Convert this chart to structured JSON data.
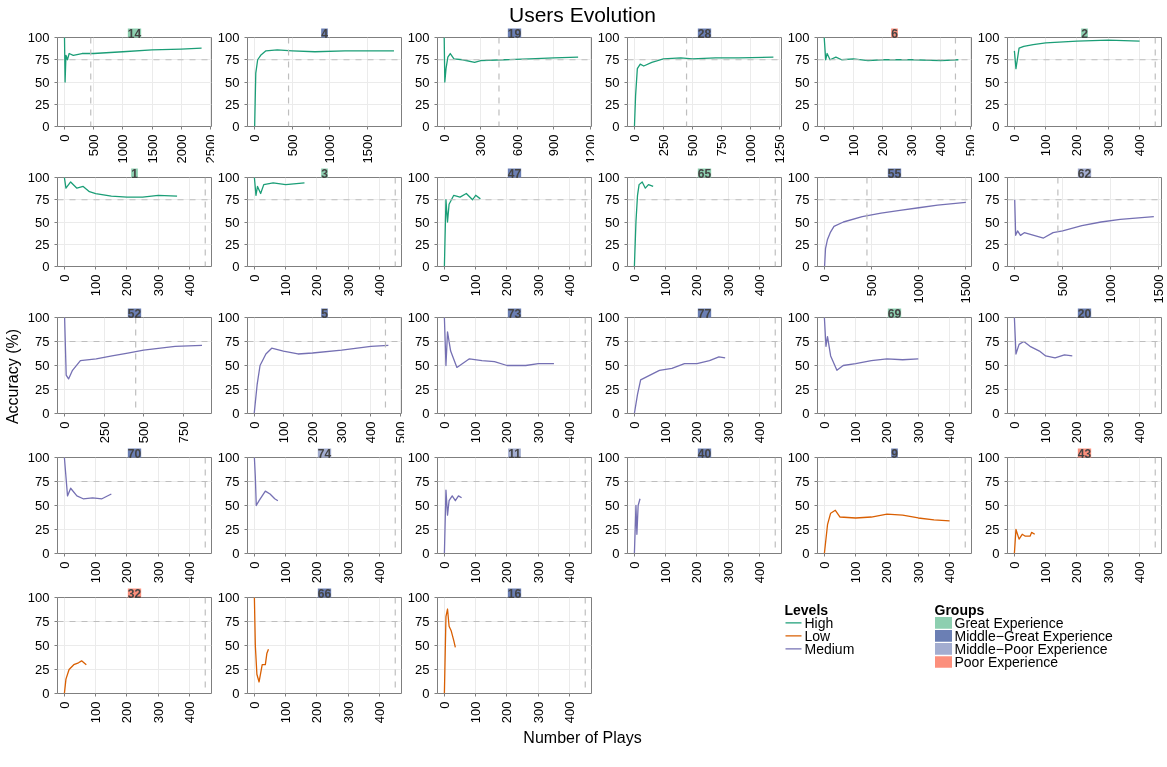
{
  "chart_data": [
    {
      "type": "other",
      "title": "Users Evolution",
      "xlabel": "Number of Plays",
      "ylabel": "Accuracy (%)"
    },
    {
      "type": "line",
      "title": "14",
      "colors": [
        "#8dcfb0"
      ],
      "xlim": [
        -120,
        2520
      ],
      "xticks": [
        0,
        500,
        1000,
        1500,
        2000,
        2500
      ],
      "ylim": [
        0,
        100
      ],
      "yticks": [
        0,
        25,
        50,
        75,
        100
      ],
      "grid": true,
      "line_style": "solid",
      "ref_lines": [
        {
          "axis": "y",
          "value": 75,
          "color": "#bebebe",
          "line_style": "dashed"
        },
        {
          "axis": "x",
          "value": 450,
          "color": "#bebebe",
          "line_style": "dashed"
        }
      ],
      "series": [
        {
          "color": "#1b9e77",
          "x": [
            0,
            10,
            25,
            50,
            80,
            150,
            300,
            500,
            1000,
            1500,
            2000,
            2350
          ],
          "values": [
            100,
            50,
            80,
            75,
            82,
            80,
            82,
            82,
            84,
            86,
            87,
            88
          ]
        }
      ]
    },
    {
      "type": "line",
      "title": "4",
      "colors": [
        "#6b7fb4"
      ],
      "xlim": [
        -95,
        1950
      ],
      "xticks": [
        0,
        500,
        1000,
        1500
      ],
      "ylim": [
        0,
        100
      ],
      "yticks": [
        0,
        25,
        50,
        75,
        100
      ],
      "grid": true,
      "line_style": "solid",
      "ref_lines": [
        {
          "axis": "y",
          "value": 75,
          "color": "#bebebe",
          "line_style": "dashed"
        },
        {
          "axis": "x",
          "value": 450,
          "color": "#bebebe",
          "line_style": "dashed"
        }
      ],
      "series": [
        {
          "color": "#1b9e77",
          "x": [
            0,
            15,
            40,
            80,
            150,
            300,
            500,
            800,
            1200,
            1500,
            1850
          ],
          "values": [
            0,
            60,
            75,
            80,
            85,
            86,
            85,
            84,
            85,
            85,
            85
          ]
        }
      ]
    },
    {
      "type": "line",
      "title": "19",
      "colors": [
        "#6b7fb4"
      ],
      "xlim": [
        -55,
        1210
      ],
      "xticks": [
        0,
        300,
        600,
        900,
        1200
      ],
      "ylim": [
        0,
        100
      ],
      "yticks": [
        0,
        25,
        50,
        75,
        100
      ],
      "grid": true,
      "line_style": "solid",
      "ref_lines": [
        {
          "axis": "y",
          "value": 75,
          "color": "#bebebe",
          "line_style": "dashed"
        },
        {
          "axis": "x",
          "value": 450,
          "color": "#bebebe",
          "line_style": "dashed"
        }
      ],
      "series": [
        {
          "color": "#1b9e77",
          "x": [
            0,
            5,
            15,
            30,
            50,
            80,
            150,
            250,
            300,
            500,
            700,
            900,
            1100
          ],
          "values": [
            100,
            50,
            65,
            78,
            82,
            76,
            75,
            72,
            74,
            75,
            76,
            77,
            78
          ]
        }
      ]
    },
    {
      "type": "line",
      "title": "28",
      "colors": [
        "#6b7fb4"
      ],
      "xlim": [
        -60,
        1270
      ],
      "xticks": [
        0,
        250,
        500,
        750,
        1000,
        1250
      ],
      "ylim": [
        0,
        100
      ],
      "yticks": [
        0,
        25,
        50,
        75,
        100
      ],
      "grid": true,
      "line_style": "solid",
      "ref_lines": [
        {
          "axis": "y",
          "value": 75,
          "color": "#bebebe",
          "line_style": "dashed"
        },
        {
          "axis": "x",
          "value": 450,
          "color": "#bebebe",
          "line_style": "dashed"
        }
      ],
      "series": [
        {
          "color": "#1b9e77",
          "x": [
            0,
            10,
            25,
            50,
            80,
            150,
            250,
            400,
            500,
            700,
            900,
            1200
          ],
          "values": [
            0,
            35,
            65,
            70,
            68,
            72,
            76,
            77,
            76,
            77,
            77,
            78
          ]
        }
      ]
    },
    {
      "type": "line",
      "title": "6",
      "colors": [
        "#fc8f7c"
      ],
      "xlim": [
        -23,
        505
      ],
      "xticks": [
        0,
        100,
        200,
        300,
        400,
        500
      ],
      "ylim": [
        0,
        100
      ],
      "yticks": [
        0,
        25,
        50,
        75,
        100
      ],
      "grid": true,
      "line_style": "solid",
      "ref_lines": [
        {
          "axis": "y",
          "value": 75,
          "color": "#bebebe",
          "line_style": "dashed"
        },
        {
          "axis": "x",
          "value": 450,
          "color": "#bebebe",
          "line_style": "dashed"
        }
      ],
      "series": [
        {
          "color": "#1b9e77",
          "x": [
            0,
            5,
            10,
            20,
            40,
            60,
            100,
            150,
            200,
            300,
            400,
            460
          ],
          "values": [
            100,
            75,
            82,
            75,
            78,
            75,
            76,
            74,
            75,
            75,
            74,
            75
          ]
        }
      ]
    },
    {
      "type": "line",
      "title": "2",
      "colors": [
        "#8dcfb0"
      ],
      "xlim": [
        -22,
        470
      ],
      "xticks": [
        0,
        100,
        200,
        300,
        400
      ],
      "ylim": [
        0,
        100
      ],
      "yticks": [
        0,
        25,
        50,
        75,
        100
      ],
      "grid": true,
      "line_style": "solid",
      "ref_lines": [
        {
          "axis": "y",
          "value": 75,
          "color": "#bebebe",
          "line_style": "dashed"
        },
        {
          "axis": "x",
          "value": 450,
          "color": "#bebebe",
          "line_style": "dashed"
        }
      ],
      "series": [
        {
          "color": "#1b9e77",
          "x": [
            0,
            5,
            15,
            30,
            60,
            100,
            200,
            300,
            400
          ],
          "values": [
            85,
            65,
            88,
            90,
            92,
            94,
            96,
            97,
            96
          ]
        }
      ]
    },
    {
      "type": "line",
      "title": "1",
      "colors": [
        "#8dcfb0"
      ],
      "xlim": [
        -22,
        470
      ],
      "xticks": [
        0,
        100,
        200,
        300,
        400
      ],
      "ylim": [
        0,
        100
      ],
      "yticks": [
        0,
        25,
        50,
        75,
        100
      ],
      "grid": true,
      "line_style": "solid",
      "ref_lines": [
        {
          "axis": "y",
          "value": 75,
          "color": "#bebebe",
          "line_style": "dashed"
        },
        {
          "axis": "x",
          "value": 450,
          "color": "#bebebe",
          "line_style": "dashed"
        }
      ],
      "series": [
        {
          "color": "#1b9e77",
          "x": [
            0,
            5,
            20,
            40,
            60,
            80,
            100,
            150,
            200,
            250,
            300,
            360
          ],
          "values": [
            100,
            88,
            95,
            88,
            90,
            84,
            82,
            79,
            78,
            78,
            80,
            79
          ]
        }
      ]
    },
    {
      "type": "line",
      "title": "3",
      "colors": [
        "#8dcfb0"
      ],
      "xlim": [
        -22,
        470
      ],
      "xticks": [
        0,
        100,
        200,
        300,
        400
      ],
      "ylim": [
        0,
        100
      ],
      "yticks": [
        0,
        25,
        50,
        75,
        100
      ],
      "grid": true,
      "line_style": "solid",
      "ref_lines": [
        {
          "axis": "y",
          "value": 75,
          "color": "#bebebe",
          "line_style": "dashed"
        },
        {
          "axis": "x",
          "value": 450,
          "color": "#bebebe",
          "line_style": "dashed"
        }
      ],
      "series": [
        {
          "color": "#1b9e77",
          "x": [
            0,
            5,
            10,
            20,
            30,
            60,
            100,
            160
          ],
          "values": [
            100,
            80,
            90,
            82,
            92,
            94,
            92,
            94
          ]
        }
      ]
    },
    {
      "type": "line",
      "title": "47",
      "colors": [
        "#6b7fb4"
      ],
      "xlim": [
        -22,
        470
      ],
      "xticks": [
        0,
        100,
        200,
        300,
        400
      ],
      "ylim": [
        0,
        100
      ],
      "yticks": [
        0,
        25,
        50,
        75,
        100
      ],
      "grid": true,
      "line_style": "solid",
      "ref_lines": [
        {
          "axis": "y",
          "value": 75,
          "color": "#bebebe",
          "line_style": "dashed"
        },
        {
          "axis": "x",
          "value": 450,
          "color": "#bebebe",
          "line_style": "dashed"
        }
      ],
      "series": [
        {
          "color": "#1b9e77",
          "x": [
            0,
            5,
            10,
            15,
            30,
            50,
            70,
            90,
            100,
            115
          ],
          "values": [
            0,
            75,
            50,
            70,
            80,
            78,
            82,
            75,
            80,
            76
          ]
        }
      ]
    },
    {
      "type": "line",
      "title": "65",
      "colors": [
        "#8dcfb0"
      ],
      "xlim": [
        -22,
        470
      ],
      "xticks": [
        0,
        100,
        200,
        300,
        400
      ],
      "ylim": [
        0,
        100
      ],
      "yticks": [
        0,
        25,
        50,
        75,
        100
      ],
      "grid": true,
      "line_style": "solid",
      "ref_lines": [
        {
          "axis": "y",
          "value": 75,
          "color": "#bebebe",
          "line_style": "dashed"
        },
        {
          "axis": "x",
          "value": 450,
          "color": "#bebebe",
          "line_style": "dashed"
        }
      ],
      "series": [
        {
          "color": "#1b9e77",
          "x": [
            0,
            5,
            10,
            15,
            25,
            35,
            45,
            60
          ],
          "values": [
            0,
            50,
            80,
            92,
            95,
            88,
            92,
            90
          ]
        }
      ]
    },
    {
      "type": "line",
      "title": "55",
      "colors": [
        "#6b7fb4"
      ],
      "xlim": [
        -75,
        1560
      ],
      "xticks": [
        0,
        500,
        1000,
        1500
      ],
      "ylim": [
        0,
        100
      ],
      "yticks": [
        0,
        25,
        50,
        75,
        100
      ],
      "grid": true,
      "line_style": "solid",
      "ref_lines": [
        {
          "axis": "y",
          "value": 75,
          "color": "#bebebe",
          "line_style": "dashed"
        },
        {
          "axis": "x",
          "value": 450,
          "color": "#bebebe",
          "line_style": "dashed"
        }
      ],
      "series": [
        {
          "color": "#7570b3",
          "x": [
            0,
            10,
            30,
            60,
            100,
            200,
            400,
            600,
            800,
            1000,
            1200,
            1500
          ],
          "values": [
            0,
            20,
            30,
            38,
            45,
            50,
            56,
            60,
            63,
            66,
            69,
            72
          ]
        }
      ]
    },
    {
      "type": "line",
      "title": "62",
      "colors": [
        "#a3add0"
      ],
      "xlim": [
        -75,
        1530
      ],
      "xticks": [
        0,
        500,
        1000,
        1500
      ],
      "ylim": [
        0,
        100
      ],
      "yticks": [
        0,
        25,
        50,
        75,
        100
      ],
      "grid": true,
      "line_style": "solid",
      "ref_lines": [
        {
          "axis": "y",
          "value": 75,
          "color": "#bebebe",
          "line_style": "dashed"
        },
        {
          "axis": "x",
          "value": 450,
          "color": "#bebebe",
          "line_style": "dashed"
        }
      ],
      "series": [
        {
          "color": "#7570b3",
          "x": [
            0,
            10,
            30,
            60,
            100,
            200,
            300,
            400,
            500,
            700,
            900,
            1100,
            1450
          ],
          "values": [
            75,
            35,
            40,
            35,
            38,
            35,
            32,
            38,
            40,
            46,
            50,
            53,
            56
          ]
        }
      ]
    },
    {
      "type": "line",
      "title": "52",
      "colors": [
        "#6b7fb4"
      ],
      "xlim": [
        -45,
        930
      ],
      "xticks": [
        0,
        250,
        500,
        750
      ],
      "ylim": [
        0,
        100
      ],
      "yticks": [
        0,
        25,
        50,
        75,
        100
      ],
      "grid": true,
      "line_style": "solid",
      "ref_lines": [
        {
          "axis": "y",
          "value": 75,
          "color": "#bebebe",
          "line_style": "dashed"
        },
        {
          "axis": "x",
          "value": 450,
          "color": "#bebebe",
          "line_style": "dashed"
        }
      ],
      "series": [
        {
          "color": "#7570b3",
          "x": [
            0,
            10,
            25,
            50,
            100,
            200,
            300,
            400,
            500,
            700,
            870
          ],
          "values": [
            100,
            40,
            36,
            45,
            55,
            57,
            60,
            63,
            66,
            70,
            71
          ]
        }
      ]
    },
    {
      "type": "line",
      "title": "5",
      "colors": [
        "#6b7fb4"
      ],
      "xlim": [
        -23,
        505
      ],
      "xticks": [
        0,
        100,
        200,
        300,
        400,
        500
      ],
      "ylim": [
        0,
        100
      ],
      "yticks": [
        0,
        25,
        50,
        75,
        100
      ],
      "grid": true,
      "line_style": "solid",
      "ref_lines": [
        {
          "axis": "y",
          "value": 75,
          "color": "#bebebe",
          "line_style": "dashed"
        },
        {
          "axis": "x",
          "value": 450,
          "color": "#bebebe",
          "line_style": "dashed"
        }
      ],
      "series": [
        {
          "color": "#7570b3",
          "x": [
            0,
            10,
            20,
            40,
            60,
            100,
            150,
            200,
            300,
            400,
            460
          ],
          "values": [
            0,
            30,
            50,
            62,
            68,
            65,
            62,
            63,
            66,
            70,
            71
          ]
        }
      ]
    },
    {
      "type": "line",
      "title": "73",
      "colors": [
        "#6b7fb4"
      ],
      "xlim": [
        -22,
        470
      ],
      "xticks": [
        0,
        100,
        200,
        300,
        400
      ],
      "ylim": [
        0,
        100
      ],
      "yticks": [
        0,
        25,
        50,
        75,
        100
      ],
      "grid": true,
      "line_style": "solid",
      "ref_lines": [
        {
          "axis": "y",
          "value": 75,
          "color": "#bebebe",
          "line_style": "dashed"
        },
        {
          "axis": "x",
          "value": 450,
          "color": "#bebebe",
          "line_style": "dashed"
        }
      ],
      "series": [
        {
          "color": "#7570b3",
          "x": [
            0,
            5,
            10,
            20,
            40,
            80,
            120,
            160,
            200,
            260,
            300,
            350
          ],
          "values": [
            100,
            50,
            85,
            65,
            48,
            57,
            55,
            54,
            50,
            50,
            52,
            52
          ]
        }
      ]
    },
    {
      "type": "line",
      "title": "77",
      "colors": [
        "#6b7fb4"
      ],
      "xlim": [
        -22,
        470
      ],
      "xticks": [
        0,
        100,
        200,
        300,
        400
      ],
      "ylim": [
        0,
        100
      ],
      "yticks": [
        0,
        25,
        50,
        75,
        100
      ],
      "grid": true,
      "line_style": "solid",
      "ref_lines": [
        {
          "axis": "y",
          "value": 75,
          "color": "#bebebe",
          "line_style": "dashed"
        },
        {
          "axis": "x",
          "value": 450,
          "color": "#bebebe",
          "line_style": "dashed"
        }
      ],
      "series": [
        {
          "color": "#7570b3",
          "x": [
            0,
            10,
            20,
            50,
            80,
            120,
            160,
            200,
            240,
            270,
            290
          ],
          "values": [
            0,
            20,
            35,
            40,
            45,
            47,
            52,
            52,
            55,
            59,
            58
          ]
        }
      ]
    },
    {
      "type": "line",
      "title": "69",
      "colors": [
        "#8dcfb0"
      ],
      "xlim": [
        -22,
        470
      ],
      "xticks": [
        0,
        100,
        200,
        300,
        400
      ],
      "ylim": [
        0,
        100
      ],
      "yticks": [
        0,
        25,
        50,
        75,
        100
      ],
      "grid": true,
      "line_style": "solid",
      "ref_lines": [
        {
          "axis": "y",
          "value": 75,
          "color": "#bebebe",
          "line_style": "dashed"
        },
        {
          "axis": "x",
          "value": 450,
          "color": "#bebebe",
          "line_style": "dashed"
        }
      ],
      "series": [
        {
          "color": "#7570b3",
          "x": [
            0,
            5,
            10,
            20,
            40,
            60,
            100,
            150,
            200,
            250,
            300
          ],
          "values": [
            100,
            70,
            80,
            60,
            45,
            50,
            52,
            55,
            57,
            56,
            57
          ]
        }
      ]
    },
    {
      "type": "line",
      "title": "20",
      "colors": [
        "#6b7fb4"
      ],
      "xlim": [
        -22,
        470
      ],
      "xticks": [
        0,
        100,
        200,
        300,
        400
      ],
      "ylim": [
        0,
        100
      ],
      "yticks": [
        0,
        25,
        50,
        75,
        100
      ],
      "grid": true,
      "line_style": "solid",
      "ref_lines": [
        {
          "axis": "y",
          "value": 75,
          "color": "#bebebe",
          "line_style": "dashed"
        },
        {
          "axis": "x",
          "value": 450,
          "color": "#bebebe",
          "line_style": "dashed"
        }
      ],
      "series": [
        {
          "color": "#7570b3",
          "x": [
            0,
            5,
            15,
            30,
            50,
            80,
            100,
            130,
            160,
            185
          ],
          "values": [
            100,
            62,
            72,
            75,
            70,
            65,
            60,
            58,
            61,
            60
          ]
        }
      ]
    },
    {
      "type": "line",
      "title": "70",
      "colors": [
        "#6b7fb4"
      ],
      "xlim": [
        -22,
        470
      ],
      "xticks": [
        0,
        100,
        200,
        300,
        400
      ],
      "ylim": [
        0,
        100
      ],
      "yticks": [
        0,
        25,
        50,
        75,
        100
      ],
      "grid": true,
      "line_style": "solid",
      "ref_lines": [
        {
          "axis": "y",
          "value": 75,
          "color": "#bebebe",
          "line_style": "dashed"
        },
        {
          "axis": "x",
          "value": 450,
          "color": "#bebebe",
          "line_style": "dashed"
        }
      ],
      "series": [
        {
          "color": "#7570b3",
          "x": [
            0,
            5,
            10,
            20,
            40,
            60,
            90,
            120,
            150
          ],
          "values": [
            100,
            80,
            60,
            68,
            60,
            57,
            58,
            57,
            62
          ]
        }
      ]
    },
    {
      "type": "line",
      "title": "74",
      "colors": [
        "#a3add0"
      ],
      "xlim": [
        -22,
        470
      ],
      "xticks": [
        0,
        100,
        200,
        300,
        400
      ],
      "ylim": [
        0,
        100
      ],
      "yticks": [
        0,
        25,
        50,
        75,
        100
      ],
      "grid": true,
      "line_style": "solid",
      "ref_lines": [
        {
          "axis": "y",
          "value": 75,
          "color": "#bebebe",
          "line_style": "dashed"
        },
        {
          "axis": "x",
          "value": 450,
          "color": "#bebebe",
          "line_style": "dashed"
        }
      ],
      "series": [
        {
          "color": "#7570b3",
          "x": [
            0,
            3,
            6,
            15,
            25,
            35,
            50,
            65,
            75
          ],
          "values": [
            100,
            80,
            50,
            55,
            60,
            65,
            62,
            57,
            55
          ]
        }
      ]
    },
    {
      "type": "line",
      "title": "11",
      "colors": [
        "#a3add0"
      ],
      "xlim": [
        -22,
        470
      ],
      "xticks": [
        0,
        100,
        200,
        300,
        400
      ],
      "ylim": [
        0,
        100
      ],
      "yticks": [
        0,
        25,
        50,
        75,
        100
      ],
      "grid": true,
      "line_style": "solid",
      "ref_lines": [
        {
          "axis": "y",
          "value": 75,
          "color": "#bebebe",
          "line_style": "dashed"
        },
        {
          "axis": "x",
          "value": 450,
          "color": "#bebebe",
          "line_style": "dashed"
        }
      ],
      "series": [
        {
          "color": "#7570b3",
          "x": [
            0,
            5,
            10,
            15,
            25,
            35,
            45,
            55
          ],
          "values": [
            0,
            66,
            40,
            55,
            60,
            55,
            60,
            58
          ]
        }
      ]
    },
    {
      "type": "line",
      "title": "40",
      "colors": [
        "#6b7fb4"
      ],
      "xlim": [
        -22,
        470
      ],
      "xticks": [
        0,
        100,
        200,
        300,
        400
      ],
      "ylim": [
        0,
        100
      ],
      "yticks": [
        0,
        25,
        50,
        75,
        100
      ],
      "grid": true,
      "line_style": "solid",
      "ref_lines": [
        {
          "axis": "y",
          "value": 75,
          "color": "#bebebe",
          "line_style": "dashed"
        },
        {
          "axis": "x",
          "value": 450,
          "color": "#bebebe",
          "line_style": "dashed"
        }
      ],
      "series": [
        {
          "color": "#7570b3",
          "x": [
            0,
            5,
            8,
            12,
            18
          ],
          "values": [
            0,
            50,
            20,
            50,
            57
          ]
        }
      ]
    },
    {
      "type": "line",
      "title": "9",
      "colors": [
        "#6b7fb4"
      ],
      "xlim": [
        -22,
        470
      ],
      "xticks": [
        0,
        100,
        200,
        300,
        400
      ],
      "ylim": [
        0,
        100
      ],
      "yticks": [
        0,
        25,
        50,
        75,
        100
      ],
      "grid": true,
      "line_style": "solid",
      "ref_lines": [
        {
          "axis": "y",
          "value": 75,
          "color": "#bebebe",
          "line_style": "dashed"
        },
        {
          "axis": "x",
          "value": 450,
          "color": "#bebebe",
          "line_style": "dashed"
        }
      ],
      "series": [
        {
          "color": "#d95f02",
          "x": [
            0,
            10,
            20,
            35,
            50,
            100,
            150,
            200,
            250,
            300,
            350,
            400
          ],
          "values": [
            0,
            30,
            42,
            45,
            38,
            37,
            38,
            41,
            40,
            37,
            35,
            34
          ]
        }
      ]
    },
    {
      "type": "line",
      "title": "43",
      "colors": [
        "#fc8f7c"
      ],
      "xlim": [
        -22,
        470
      ],
      "xticks": [
        0,
        100,
        200,
        300,
        400
      ],
      "ylim": [
        0,
        100
      ],
      "yticks": [
        0,
        25,
        50,
        75,
        100
      ],
      "grid": true,
      "line_style": "solid",
      "ref_lines": [
        {
          "axis": "y",
          "value": 75,
          "color": "#bebebe",
          "line_style": "dashed"
        },
        {
          "axis": "x",
          "value": 450,
          "color": "#bebebe",
          "line_style": "dashed"
        }
      ],
      "series": [
        {
          "color": "#d95f02",
          "x": [
            0,
            5,
            15,
            25,
            35,
            50,
            55,
            65
          ],
          "values": [
            0,
            25,
            15,
            20,
            18,
            18,
            22,
            20
          ]
        }
      ]
    },
    {
      "type": "line",
      "title": "32",
      "colors": [
        "#fc8f7c"
      ],
      "xlim": [
        -22,
        470
      ],
      "xticks": [
        0,
        100,
        200,
        300,
        400
      ],
      "ylim": [
        0,
        100
      ],
      "yticks": [
        0,
        25,
        50,
        75,
        100
      ],
      "grid": true,
      "line_style": "solid",
      "ref_lines": [
        {
          "axis": "y",
          "value": 75,
          "color": "#bebebe",
          "line_style": "dashed"
        },
        {
          "axis": "x",
          "value": 450,
          "color": "#bebebe",
          "line_style": "dashed"
        }
      ],
      "series": [
        {
          "color": "#d95f02",
          "x": [
            0,
            5,
            15,
            30,
            45,
            55,
            70
          ],
          "values": [
            0,
            15,
            25,
            30,
            32,
            34,
            30
          ]
        }
      ]
    },
    {
      "type": "line",
      "title": "66",
      "colors": [
        "#6b7fb4"
      ],
      "xlim": [
        -22,
        470
      ],
      "xticks": [
        0,
        100,
        200,
        300,
        400
      ],
      "ylim": [
        0,
        100
      ],
      "yticks": [
        0,
        25,
        50,
        75,
        100
      ],
      "grid": true,
      "line_style": "solid",
      "ref_lines": [
        {
          "axis": "y",
          "value": 75,
          "color": "#bebebe",
          "line_style": "dashed"
        },
        {
          "axis": "x",
          "value": 450,
          "color": "#bebebe",
          "line_style": "dashed"
        }
      ],
      "series": [
        {
          "color": "#d95f02",
          "x": [
            0,
            3,
            8,
            15,
            25,
            35,
            40,
            45
          ],
          "values": [
            100,
            50,
            20,
            12,
            30,
            30,
            42,
            46
          ]
        }
      ]
    },
    {
      "type": "line",
      "title": "16",
      "colors": [
        "#6b7fb4"
      ],
      "xlim": [
        -22,
        470
      ],
      "xticks": [
        0,
        100,
        200,
        300,
        400
      ],
      "ylim": [
        0,
        100
      ],
      "yticks": [
        0,
        25,
        50,
        75,
        100
      ],
      "grid": true,
      "line_style": "solid",
      "ref_lines": [
        {
          "axis": "y",
          "value": 75,
          "color": "#bebebe",
          "line_style": "dashed"
        },
        {
          "axis": "x",
          "value": 450,
          "color": "#bebebe",
          "line_style": "dashed"
        }
      ],
      "series": [
        {
          "color": "#d95f02",
          "x": [
            0,
            5,
            10,
            15,
            22,
            30,
            35
          ],
          "values": [
            0,
            80,
            88,
            70,
            65,
            55,
            48
          ]
        }
      ]
    },
    {
      "type": "other",
      "legend_title": "Levels",
      "categories": [
        "High",
        "Low",
        "Medium"
      ],
      "colors": [
        "#1b9e77",
        "#d95f02",
        "#7570b3"
      ]
    },
    {
      "type": "other",
      "legend_title": "Groups",
      "categories": [
        "Great Experience",
        "Middle−Great Experience",
        "Middle−Poor Experience",
        "Poor Experience"
      ],
      "colors": [
        "#8dcfb0",
        "#6b7fb4",
        "#a3add0",
        "#fc8f7c"
      ]
    }
  ]
}
